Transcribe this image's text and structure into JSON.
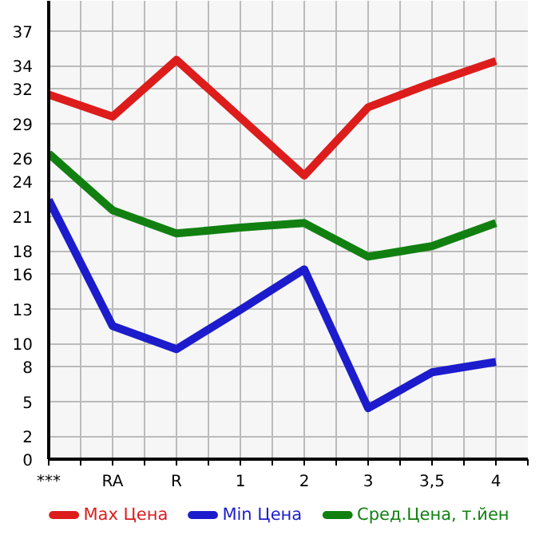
{
  "chart_data": {
    "type": "line",
    "categories": [
      "***",
      "RA",
      "R",
      "1",
      "2",
      "3",
      "3,5",
      "4"
    ],
    "series": [
      {
        "name": "Max Цена",
        "color": "#dd1c1c",
        "values": [
          31.5,
          29.6,
          34.5,
          29.5,
          24.5,
          30.4,
          32.5,
          34.4
        ]
      },
      {
        "name": "Min Цена",
        "color": "#1c1ccc",
        "values": [
          22.4,
          11.5,
          9.5,
          12.9,
          16.4,
          4.4,
          7.5,
          8.4
        ]
      },
      {
        "name": "Сред.Цена, т.йен",
        "color": "#118011",
        "values": [
          26.4,
          21.5,
          19.5,
          20.0,
          20.4,
          17.5,
          18.4,
          20.4
        ]
      }
    ],
    "ylim": [
      0,
      39.6
    ],
    "yticks": [
      0,
      2,
      5,
      8,
      10,
      13,
      16,
      18,
      21,
      24,
      26,
      29,
      32,
      34,
      37
    ],
    "grid": true,
    "legend": "bottom",
    "marker": "none",
    "line_style": "solid"
  }
}
